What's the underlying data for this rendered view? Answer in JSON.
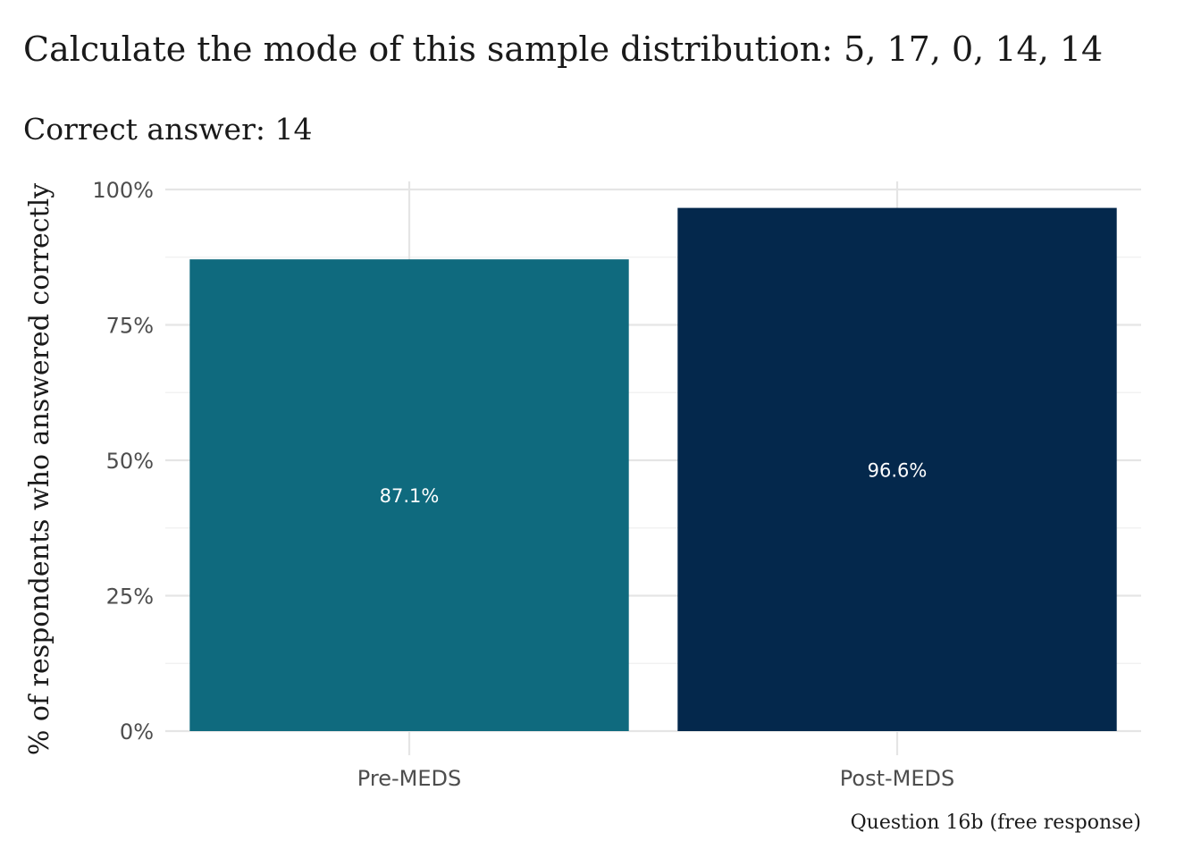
{
  "chart_data": {
    "type": "bar",
    "title": "Calculate the mode of this sample distribution: 5, 17, 0, 14, 14",
    "subtitle": "Correct answer: 14",
    "xlabel": "",
    "ylabel": "% of respondents who answered correctly",
    "caption": "Question 16b (free response)",
    "categories": [
      "Pre-MEDS",
      "Post-MEDS"
    ],
    "values": [
      87.1,
      96.6
    ],
    "data_labels": [
      "87.1%",
      "96.6%"
    ],
    "colors": [
      "#0f6a7e",
      "#04284c"
    ],
    "ylim": [
      0,
      100
    ],
    "yticks": [
      0,
      25,
      50,
      75,
      100
    ],
    "ytick_labels": [
      "0%",
      "25%",
      "50%",
      "75%",
      "100%"
    ],
    "grid": true,
    "legend": "none"
  }
}
